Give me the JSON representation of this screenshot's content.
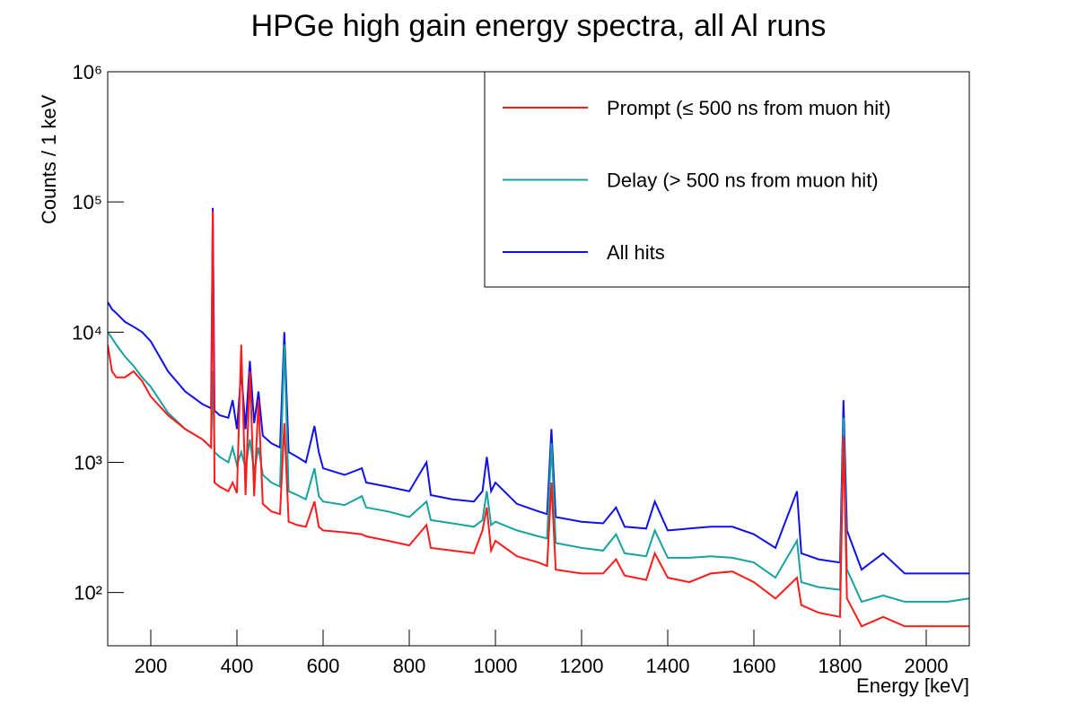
{
  "chart_data": {
    "type": "line",
    "title": "HPGe high gain energy spectra, all Al runs",
    "x_label": "Energy [keV]",
    "y_label": "Counts / 1 keV",
    "log_y": true,
    "legend": "top-right",
    "xlim": [
      100,
      2100
    ],
    "xticks": [
      200,
      400,
      600,
      800,
      1000,
      1200,
      1400,
      1600,
      1800,
      2000
    ],
    "ylim": [
      39,
      1000000
    ],
    "yticks": [
      {
        "value": 100,
        "label": "10²"
      },
      {
        "value": 1000,
        "label": "10³"
      },
      {
        "value": 10000,
        "label": "10⁴"
      },
      {
        "value": 100000,
        "label": "10⁵"
      },
      {
        "value": 1000000,
        "label": "10⁶"
      }
    ],
    "x": [
      100,
      110,
      120,
      140,
      160,
      180,
      200,
      240,
      280,
      320,
      340,
      344,
      348,
      360,
      380,
      390,
      400,
      410,
      420,
      430,
      440,
      450,
      460,
      480,
      500,
      510,
      520,
      540,
      560,
      580,
      590,
      600,
      650,
      690,
      700,
      750,
      800,
      840,
      850,
      900,
      950,
      970,
      980,
      990,
      1000,
      1050,
      1100,
      1120,
      1130,
      1140,
      1200,
      1250,
      1280,
      1300,
      1350,
      1370,
      1400,
      1450,
      1500,
      1550,
      1600,
      1650,
      1700,
      1710,
      1750,
      1800,
      1808,
      1816,
      1850,
      1900,
      1950,
      2000,
      2050,
      2100
    ],
    "series": [
      {
        "name": "Prompt (≤ 500 ns from muon hit)",
        "color": "#ff1a1a",
        "values": [
          8000,
          5000,
          4500,
          4500,
          5000,
          4200,
          3200,
          2300,
          1800,
          1500,
          1300,
          85000,
          700,
          650,
          600,
          700,
          580,
          8000,
          560,
          5000,
          550,
          3000,
          480,
          420,
          400,
          2000,
          350,
          330,
          320,
          500,
          320,
          300,
          290,
          280,
          270,
          250,
          230,
          330,
          220,
          210,
          200,
          300,
          450,
          210,
          250,
          190,
          170,
          160,
          700,
          150,
          140,
          140,
          180,
          135,
          125,
          200,
          130,
          120,
          140,
          145,
          120,
          90,
          130,
          80,
          70,
          65,
          1600,
          90,
          55,
          65,
          55,
          55,
          55,
          55
        ]
      },
      {
        "name": "Delay (> 500 ns from muon hit)",
        "color": "#17a2a0",
        "values": [
          10000,
          9000,
          8000,
          6500,
          5500,
          4500,
          3800,
          2400,
          1800,
          1500,
          1300,
          5000,
          1200,
          1100,
          1000,
          1300,
          950,
          1200,
          900,
          1500,
          850,
          1300,
          800,
          700,
          650,
          8000,
          600,
          560,
          520,
          900,
          550,
          500,
          470,
          550,
          450,
          420,
          380,
          500,
          360,
          340,
          320,
          360,
          600,
          330,
          350,
          300,
          270,
          260,
          1400,
          240,
          220,
          210,
          280,
          200,
          190,
          300,
          185,
          185,
          190,
          185,
          170,
          130,
          250,
          120,
          110,
          105,
          2200,
          150,
          85,
          95,
          85,
          85,
          85,
          90
        ]
      },
      {
        "name": "All hits",
        "color": "#1010ee",
        "values": [
          17000,
          15000,
          14000,
          12000,
          11000,
          10000,
          8500,
          5000,
          3500,
          2800,
          2600,
          90000,
          2500,
          2300,
          2200,
          3000,
          1800,
          5000,
          1800,
          6000,
          2000,
          3500,
          1600,
          1400,
          1300,
          10000,
          1200,
          1100,
          1000,
          1900,
          1200,
          900,
          800,
          900,
          700,
          650,
          600,
          1000,
          560,
          520,
          500,
          600,
          1100,
          600,
          700,
          480,
          420,
          400,
          1800,
          380,
          350,
          340,
          450,
          320,
          310,
          500,
          300,
          310,
          320,
          320,
          280,
          220,
          600,
          200,
          180,
          170,
          3000,
          300,
          150,
          200,
          140,
          140,
          140,
          140
        ]
      }
    ]
  }
}
